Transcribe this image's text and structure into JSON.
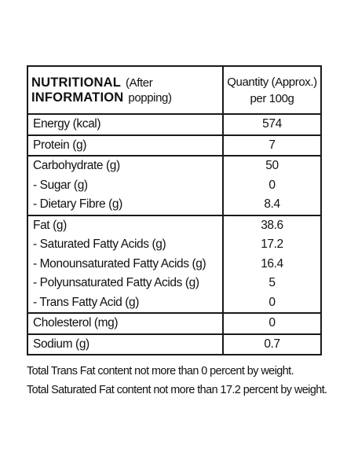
{
  "header": {
    "title_line1": "NUTRITIONAL",
    "title_note1": "(After",
    "title_line2": "INFORMATION",
    "title_note2": "popping)",
    "quantity_line1": "Quantity (Approx.)",
    "quantity_line2": "per 100g"
  },
  "rows": [
    {
      "name": "Energy (kcal)",
      "value": "574"
    },
    {
      "name": "Protein (g)",
      "value": "7"
    },
    {
      "name": "Carbohydrate (g)",
      "value": "50"
    },
    {
      "name": "- Sugar (g)",
      "value": "0"
    },
    {
      "name": "- Dietary Fibre (g)",
      "value": "8.4"
    },
    {
      "name": "Fat (g)",
      "value": "38.6"
    },
    {
      "name": "- Saturated Fatty Acids (g)",
      "value": "17.2"
    },
    {
      "name": "- Monounsaturated Fatty Acids (g)",
      "value": "16.4"
    },
    {
      "name": "- Polyunsaturated Fatty Acids (g)",
      "value": "5"
    },
    {
      "name": "- Trans Fatty Acid (g)",
      "value": "0"
    },
    {
      "name": "Cholesterol (mg)",
      "value": "0"
    },
    {
      "name": "Sodium (g)",
      "value": "0.7"
    }
  ],
  "notes": [
    "Total Trans Fat content not more than 0 percent by weight.",
    "Total Saturated Fat content not more than 17.2 percent by weight."
  ]
}
